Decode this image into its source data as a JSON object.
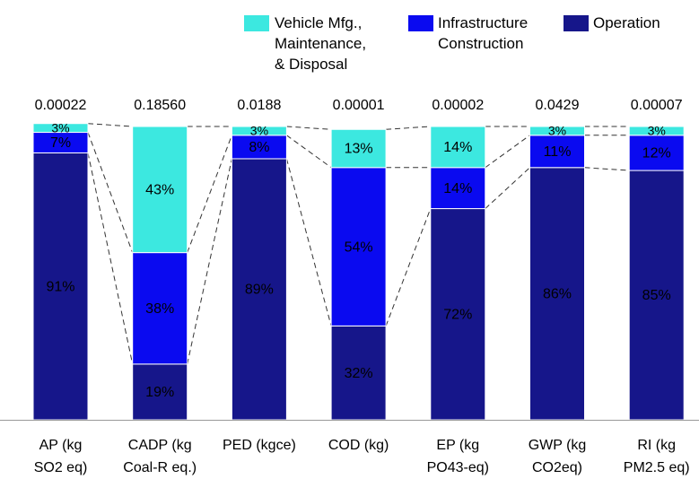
{
  "chart_data": {
    "type": "stacked_bar_percent",
    "categories": [
      [
        "AP (kg",
        "SO2 eq)"
      ],
      [
        "CADP (kg",
        "Coal-R eq.)"
      ],
      [
        "PED (kgce)"
      ],
      [
        "COD (kg)"
      ],
      [
        "EP (kg",
        "PO43-eq)"
      ],
      [
        "GWP (kg",
        "CO2eq)"
      ],
      [
        "RI (kg",
        "PM2.5 eq)"
      ]
    ],
    "totals": [
      "0.00022",
      "0.18560",
      "0.0188",
      "0.00001",
      "0.00002",
      "0.0429",
      "0.00007"
    ],
    "series": [
      {
        "name": "Vehicle Mfg., Maintenance, & Disposal",
        "color": "#3ce8e0",
        "values": [
          3,
          43,
          3,
          13,
          14,
          3,
          3
        ],
        "value_labels": [
          "3%",
          "43%",
          "3%",
          "13%",
          "14%",
          "3%",
          "3%"
        ]
      },
      {
        "name": "Infrastructure Construction",
        "color": "#0a0af0",
        "values": [
          7,
          38,
          8,
          54,
          14,
          11,
          12
        ],
        "value_labels": [
          "7%",
          "38%",
          "8%",
          "54%",
          "14%",
          "11%",
          "12%"
        ]
      },
      {
        "name": "Operation",
        "color": "#16168a",
        "values": [
          91,
          19,
          89,
          32,
          72,
          86,
          85
        ],
        "value_labels": [
          "91%",
          "19%",
          "89%",
          "32%",
          "72%",
          "86%",
          "85%"
        ]
      }
    ],
    "ylim": [
      0,
      100
    ]
  }
}
